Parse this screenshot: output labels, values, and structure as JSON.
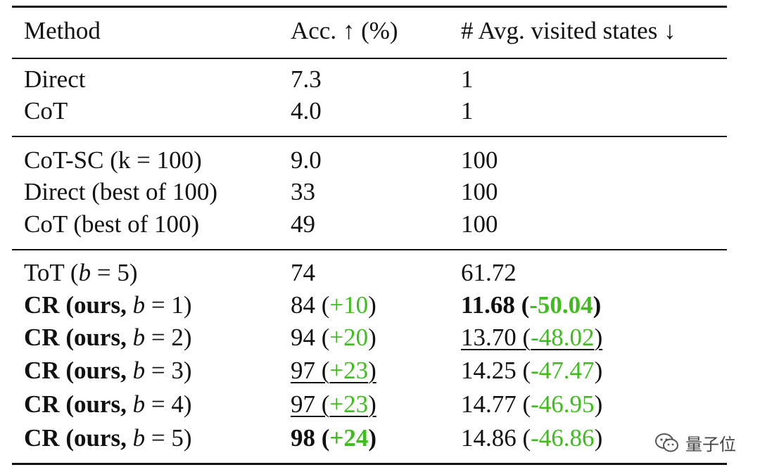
{
  "header": {
    "method": "Method",
    "acc": "Acc. ↑ (%)",
    "states": "# Avg. visited states ↓"
  },
  "rows": {
    "direct": {
      "method": "Direct",
      "acc": "7.3",
      "states": "1"
    },
    "cot": {
      "method": "CoT",
      "acc": "4.0",
      "states": "1"
    },
    "cotsc": {
      "method": "CoT-SC (k = 100)",
      "acc": "9.0",
      "states": "100"
    },
    "direct_best": {
      "method": "Direct (best of 100)",
      "acc": "33",
      "states": "100"
    },
    "cot_best": {
      "method": "CoT (best of 100)",
      "acc": "49",
      "states": "100"
    },
    "tot": {
      "method_pre": "ToT (",
      "b": "b",
      "method_post": " = 5)",
      "acc": "74",
      "states": "61.72"
    },
    "cr1": {
      "cr": "CR",
      "mid": " (ours, ",
      "b": "b",
      "post": " = 1)",
      "acc": "84",
      "acc_delta": "+10",
      "states": "11.68",
      "states_delta": "-50.04"
    },
    "cr2": {
      "cr": "CR",
      "mid": " (ours, ",
      "b": "b",
      "post": " = 2)",
      "acc": "94",
      "acc_delta": "+20",
      "states": "13.70",
      "states_delta": "-48.02"
    },
    "cr3": {
      "cr": "CR",
      "mid": " (ours, ",
      "b": "b",
      "post": " = 3)",
      "acc": "97",
      "acc_delta": "+23",
      "states": "14.25",
      "states_delta": "-47.47"
    },
    "cr4": {
      "cr": "CR",
      "mid": " (ours, ",
      "b": "b",
      "post": " = 4)",
      "acc": "97",
      "acc_delta": "+23",
      "states": "14.77",
      "states_delta": "-46.95"
    },
    "cr5": {
      "cr": "CR",
      "mid": " (ours, ",
      "b": "b",
      "post": " = 5)",
      "acc": "98",
      "acc_delta": "+24",
      "states": "14.86",
      "states_delta": "-46.86"
    }
  },
  "watermark": {
    "icon": "wechat-icon",
    "text": "量子位"
  },
  "colors": {
    "improvement": "#3dbe1c"
  }
}
